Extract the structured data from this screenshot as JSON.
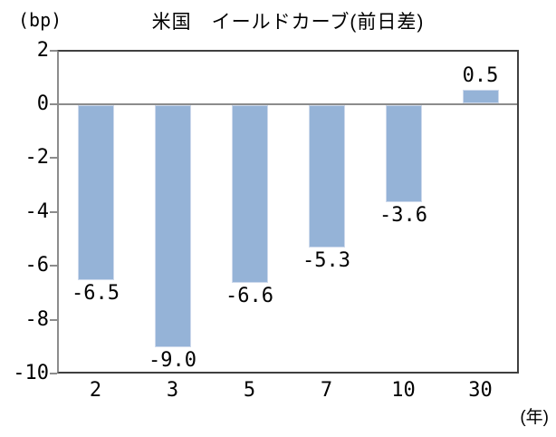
{
  "header": {
    "title": "米国　イールドカーブ(前日差)",
    "y_axis_unit": "(bp)",
    "x_axis_unit": "(年)"
  },
  "colors": {
    "background": "#ffffff",
    "bar_fill": "#95b3d7",
    "bar_edge": "#cdd9ec",
    "plot_border": "#404040",
    "axis_line": "#8c8c8c",
    "zero_line": "#8c8c8c",
    "text": "#000000"
  },
  "chart_data": {
    "type": "bar",
    "title": "米国　イールドカーブ(前日差)",
    "categories": [
      "2",
      "3",
      "5",
      "7",
      "10",
      "30"
    ],
    "values": [
      -6.5,
      -9.0,
      -6.6,
      -5.3,
      -3.6,
      0.5
    ],
    "data_labels": [
      "-6.5",
      "-9.0",
      "-6.6",
      "-5.3",
      "-3.6",
      "0.5"
    ],
    "xlabel": "(年)",
    "ylabel": "(bp)",
    "ylim": [
      -10,
      2
    ],
    "y_tick_values": [
      2,
      0,
      -2,
      -4,
      -6,
      -8,
      -10
    ],
    "y_tick_labels": [
      "2",
      "0",
      "-2",
      "-4",
      "-6",
      "-8",
      "-10"
    ],
    "grid": false,
    "legend": false,
    "bar_color": "#95b3d7"
  }
}
